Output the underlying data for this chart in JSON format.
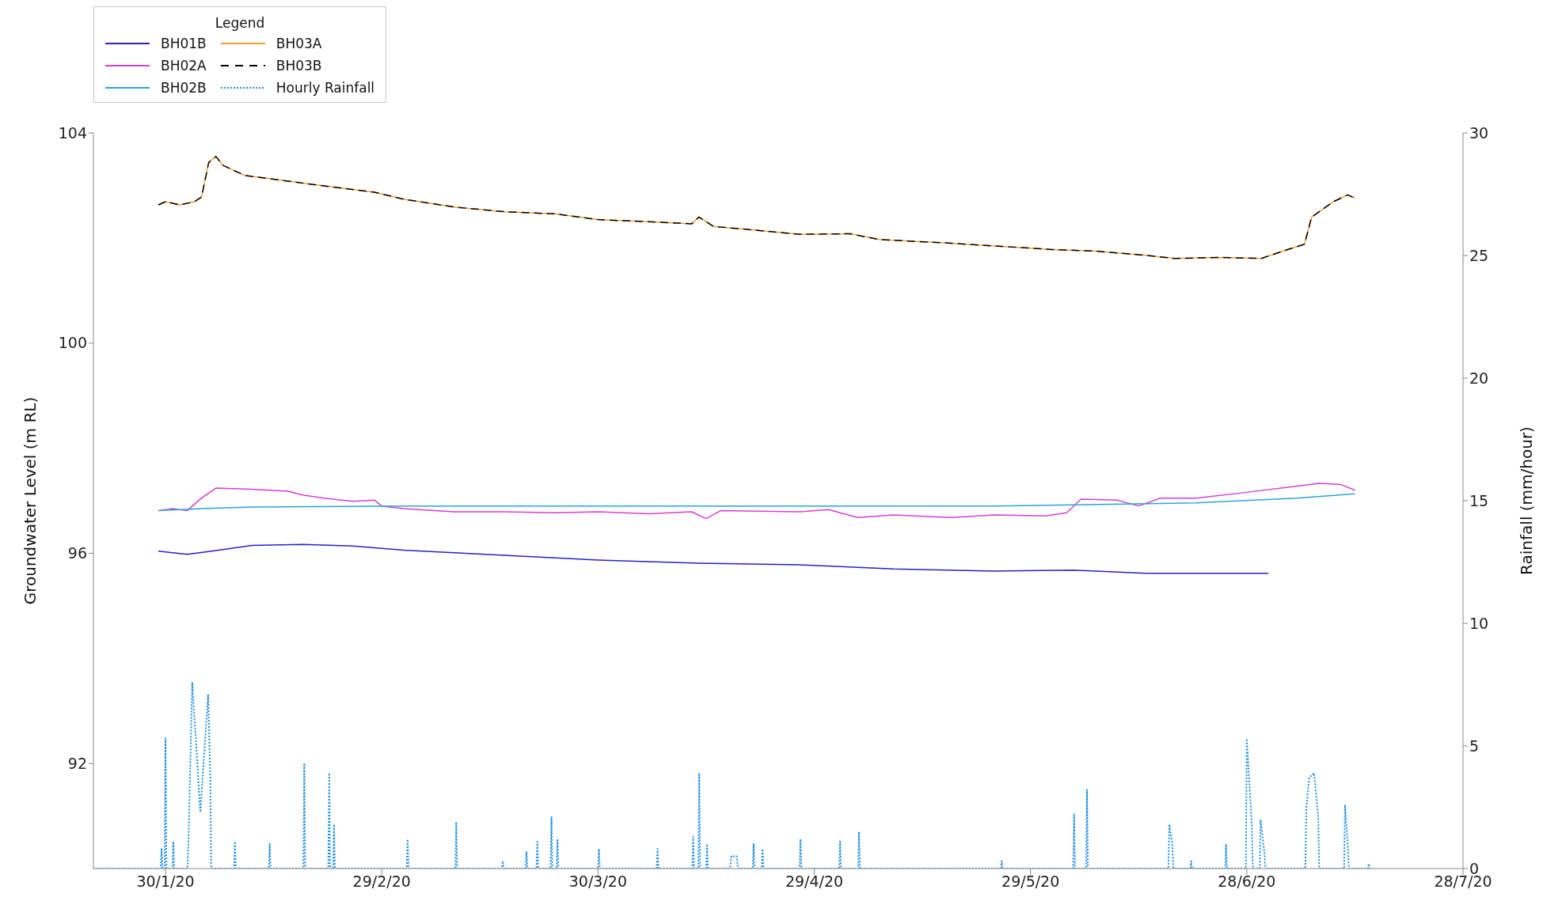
{
  "chart_data": {
    "type": "line",
    "ylabel": "Groundwater Level (m RL)",
    "y2label": "Rainfall (mm/hour)",
    "legend_title": "Legend",
    "legend": "top left",
    "grid": false,
    "marker": "none",
    "xlim": [
      "2020-01-20",
      "2020-07-28"
    ],
    "xticks": [
      {
        "value": "2020-01-30",
        "label": "30/1/20"
      },
      {
        "value": "2020-02-29",
        "label": "29/2/20"
      },
      {
        "value": "2020-03-30",
        "label": "30/3/20"
      },
      {
        "value": "2020-04-29",
        "label": "29/4/20"
      },
      {
        "value": "2020-05-29",
        "label": "29/5/20"
      },
      {
        "value": "2020-06-28",
        "label": "28/6/20"
      },
      {
        "value": "2020-07-28",
        "label": "28/7/20"
      }
    ],
    "ylim": [
      90,
      104
    ],
    "yticks": [
      92,
      96,
      100,
      104
    ],
    "y2lim": [
      0,
      30
    ],
    "y2ticks": [
      0,
      5,
      10,
      15,
      20,
      25,
      30
    ],
    "series": [
      {
        "name": "BH01B",
        "color": "#2a1fc9",
        "line_style": "solid",
        "x": [
          "2020-01-29",
          "2020-02-02",
          "2020-02-06",
          "2020-02-11",
          "2020-02-18",
          "2020-02-25",
          "2020-03-03",
          "2020-03-17",
          "2020-03-30",
          "2020-04-13",
          "2020-04-27",
          "2020-05-10",
          "2020-05-24",
          "2020-06-04",
          "2020-06-14",
          "2020-07-01"
        ],
        "values": [
          96.04,
          95.98,
          96.05,
          96.15,
          96.17,
          96.14,
          96.06,
          95.96,
          95.87,
          95.81,
          95.78,
          95.7,
          95.66,
          95.68,
          95.62,
          95.62
        ]
      },
      {
        "name": "BH02A",
        "color": "#d43fd4",
        "line_style": "solid",
        "x": [
          "2020-01-29",
          "2020-01-31",
          "2020-02-02",
          "2020-02-04",
          "2020-02-06",
          "2020-02-11",
          "2020-02-16",
          "2020-02-18",
          "2020-02-21",
          "2020-02-25",
          "2020-02-28",
          "2020-02-29",
          "2020-03-03",
          "2020-03-10",
          "2020-03-17",
          "2020-03-24",
          "2020-03-30",
          "2020-04-06",
          "2020-04-12",
          "2020-04-14",
          "2020-04-16",
          "2020-04-27",
          "2020-05-01",
          "2020-05-05",
          "2020-05-10",
          "2020-05-18",
          "2020-05-24",
          "2020-05-31",
          "2020-06-03",
          "2020-06-05",
          "2020-06-10",
          "2020-06-13",
          "2020-06-16",
          "2020-06-21",
          "2020-06-28",
          "2020-07-05",
          "2020-07-08",
          "2020-07-11",
          "2020-07-13"
        ],
        "values": [
          96.81,
          96.85,
          96.81,
          97.05,
          97.24,
          97.22,
          97.18,
          97.11,
          97.05,
          96.99,
          97.01,
          96.9,
          96.85,
          96.79,
          96.79,
          96.77,
          96.79,
          96.75,
          96.79,
          96.66,
          96.81,
          96.79,
          96.83,
          96.68,
          96.73,
          96.68,
          96.73,
          96.71,
          96.77,
          97.03,
          97.01,
          96.9,
          97.05,
          97.05,
          97.16,
          97.28,
          97.33,
          97.31,
          97.2
        ]
      },
      {
        "name": "BH02B",
        "color": "#2aa5d6",
        "line_style": "solid",
        "x": [
          "2020-01-29",
          "2020-02-04",
          "2020-02-11",
          "2020-03-03",
          "2020-03-30",
          "2020-04-27",
          "2020-05-24",
          "2020-06-04",
          "2020-06-21",
          "2020-07-05",
          "2020-07-13"
        ],
        "values": [
          96.81,
          96.85,
          96.88,
          96.9,
          96.9,
          96.9,
          96.9,
          96.92,
          96.96,
          97.05,
          97.13
        ]
      },
      {
        "name": "BH03A",
        "color": "#f0a030",
        "line_style": "solid",
        "x": [
          "2020-01-29",
          "2020-01-30",
          "2020-02-01",
          "2020-02-03",
          "2020-02-04",
          "2020-02-05",
          "2020-02-06",
          "2020-02-07",
          "2020-02-10",
          "2020-02-15",
          "2020-02-21",
          "2020-02-28",
          "2020-03-03",
          "2020-03-10",
          "2020-03-17",
          "2020-03-24",
          "2020-03-30",
          "2020-04-06",
          "2020-04-12",
          "2020-04-13",
          "2020-04-15",
          "2020-04-20",
          "2020-04-27",
          "2020-05-04",
          "2020-05-08",
          "2020-05-18",
          "2020-05-25",
          "2020-06-01",
          "2020-06-07",
          "2020-06-14",
          "2020-06-18",
          "2020-06-24",
          "2020-06-30",
          "2020-07-03",
          "2020-07-06",
          "2020-07-07",
          "2020-07-10",
          "2020-07-12",
          "2020-07-13"
        ],
        "values": [
          102.63,
          102.69,
          102.63,
          102.69,
          102.78,
          103.44,
          103.55,
          103.38,
          103.19,
          103.1,
          102.99,
          102.87,
          102.74,
          102.59,
          102.5,
          102.46,
          102.35,
          102.31,
          102.27,
          102.4,
          102.22,
          102.16,
          102.07,
          102.08,
          101.97,
          101.9,
          101.84,
          101.78,
          101.75,
          101.67,
          101.61,
          101.63,
          101.61,
          101.75,
          101.88,
          102.4,
          102.69,
          102.82,
          102.76
        ]
      },
      {
        "name": "BH03B",
        "color": "#000000",
        "line_style": "dashed",
        "x": [
          "2020-01-29",
          "2020-01-30",
          "2020-02-01",
          "2020-02-03",
          "2020-02-04",
          "2020-02-05",
          "2020-02-06",
          "2020-02-07",
          "2020-02-10",
          "2020-02-15",
          "2020-02-21",
          "2020-02-28",
          "2020-03-03",
          "2020-03-10",
          "2020-03-17",
          "2020-03-24",
          "2020-03-30",
          "2020-04-06",
          "2020-04-12",
          "2020-04-13",
          "2020-04-15",
          "2020-04-20",
          "2020-04-27",
          "2020-05-04",
          "2020-05-08",
          "2020-05-18",
          "2020-05-25",
          "2020-06-01",
          "2020-06-07",
          "2020-06-14",
          "2020-06-18",
          "2020-06-24",
          "2020-06-30",
          "2020-07-03",
          "2020-07-06",
          "2020-07-07",
          "2020-07-10",
          "2020-07-12",
          "2020-07-13"
        ],
        "values": [
          102.63,
          102.69,
          102.63,
          102.69,
          102.78,
          103.44,
          103.55,
          103.38,
          103.19,
          103.1,
          102.99,
          102.87,
          102.74,
          102.59,
          102.5,
          102.46,
          102.35,
          102.31,
          102.27,
          102.4,
          102.22,
          102.16,
          102.07,
          102.08,
          101.97,
          101.9,
          101.84,
          101.78,
          101.75,
          101.67,
          101.61,
          101.63,
          101.61,
          101.75,
          101.88,
          102.4,
          102.69,
          102.82,
          102.76
        ]
      },
      {
        "name": "Hourly Rainfall",
        "color": "#1e8fe6",
        "line_style": "dotted",
        "axis": "y2",
        "x": [
          "2020-01-20T00:00",
          "2020-01-29T08:00",
          "2020-01-29T11:00",
          "2020-01-29T14:00",
          "2020-01-29T21:00",
          "2020-01-30T00:00",
          "2020-01-30T03:00",
          "2020-01-30T23:00",
          "2020-01-31T02:00",
          "2020-01-31T05:00",
          "2020-02-02T01:00",
          "2020-02-02T04:00",
          "2020-02-02T17:00",
          "2020-02-03T20:00",
          "2020-02-04T22:00",
          "2020-02-05T05:00",
          "2020-02-05T08:00",
          "2020-02-08T12:00",
          "2020-02-08T15:00",
          "2020-02-08T18:00",
          "2020-02-13T08:00",
          "2020-02-13T11:00",
          "2020-02-13T14:00",
          "2020-02-18T03:00",
          "2020-02-18T06:00",
          "2020-02-18T09:00",
          "2020-02-21T14:00",
          "2020-02-21T17:00",
          "2020-02-21T20:00",
          "2020-02-22T06:00",
          "2020-02-22T09:00",
          "2020-02-22T12:00",
          "2020-03-03T11:00",
          "2020-03-03T14:00",
          "2020-03-03T17:00",
          "2020-03-10T05:00",
          "2020-03-10T08:00",
          "2020-03-10T11:00",
          "2020-03-16T16:00",
          "2020-03-16T19:00",
          "2020-03-16T22:00",
          "2020-03-19T23:00",
          "2020-03-20T02:00",
          "2020-03-20T05:00",
          "2020-03-21T11:00",
          "2020-03-21T14:00",
          "2020-03-21T17:00",
          "2020-03-23T10:00",
          "2020-03-23T13:00",
          "2020-03-23T16:00",
          "2020-03-24T06:00",
          "2020-03-24T09:00",
          "2020-03-24T12:00",
          "2020-03-30T00:00",
          "2020-03-30T03:00",
          "2020-03-30T06:00",
          "2020-04-07T03:00",
          "2020-04-07T06:00",
          "2020-04-07T09:00",
          "2020-04-12T02:00",
          "2020-04-12T05:00",
          "2020-04-12T08:00",
          "2020-04-12T22:00",
          "2020-04-13T01:00",
          "2020-04-13T04:00",
          "2020-04-14T00:00",
          "2020-04-14T03:00",
          "2020-04-14T06:00",
          "2020-04-17T08:00",
          "2020-04-17T12:00",
          "2020-04-18T06:00",
          "2020-04-18T10:00",
          "2020-04-20T11:00",
          "2020-04-20T14:00",
          "2020-04-20T17:00",
          "2020-04-21T17:00",
          "2020-04-21T20:00",
          "2020-04-21T23:00",
          "2020-04-26T23:00",
          "2020-04-27T02:00",
          "2020-04-27T05:00",
          "2020-05-02T11:00",
          "2020-05-02T14:00",
          "2020-05-02T17:00",
          "2020-05-05T02:00",
          "2020-05-05T05:00",
          "2020-05-05T08:00",
          "2020-05-24T21:00",
          "2020-05-25T00:00",
          "2020-05-25T03:00",
          "2020-06-03T22:00",
          "2020-06-04T01:00",
          "2020-06-04T04:00",
          "2020-06-05T17:00",
          "2020-06-05T20:00",
          "2020-06-05T23:00",
          "2020-06-17T03:00",
          "2020-06-17T06:00",
          "2020-06-17T16:00",
          "2020-06-17T19:00",
          "2020-06-20T04:00",
          "2020-06-20T07:00",
          "2020-06-20T10:00",
          "2020-06-25T00:00",
          "2020-06-25T03:00",
          "2020-06-25T06:00",
          "2020-06-27T21:00",
          "2020-06-28T00:00",
          "2020-06-28T17:00",
          "2020-06-28T20:00",
          "2020-06-29T19:00",
          "2020-06-29T22:00",
          "2020-06-30T11:00",
          "2020-06-30T14:00",
          "2020-07-06T03:00",
          "2020-07-06T06:00",
          "2020-07-06T16:00",
          "2020-07-07T08:00",
          "2020-07-07T22:00",
          "2020-07-08T01:00",
          "2020-07-11T12:00",
          "2020-07-11T15:00",
          "2020-07-12T01:00",
          "2020-07-12T04:00",
          "2020-07-14T19:00",
          "2020-07-14T22:00",
          "2020-07-15T01:00"
        ],
        "values": [
          0,
          0,
          0.8,
          0,
          0,
          5.3,
          0,
          0,
          1.1,
          0,
          0,
          0.9,
          7.6,
          2.3,
          7.1,
          3.8,
          0,
          0,
          1.1,
          0,
          0,
          1.0,
          0,
          0,
          4.3,
          0,
          0,
          3.9,
          0,
          0,
          1.8,
          0,
          0,
          1.2,
          0,
          0,
          1.9,
          0,
          0,
          0.3,
          0,
          0,
          0.7,
          0,
          0,
          1.1,
          0,
          0,
          2.1,
          0,
          0,
          1.2,
          0,
          0,
          0.8,
          0,
          0,
          0.8,
          0,
          0,
          1.3,
          0,
          0,
          3.9,
          0,
          0,
          1.0,
          0,
          0,
          0.5,
          0.5,
          0,
          0,
          1.0,
          0,
          0,
          0.8,
          0,
          0,
          1.2,
          0,
          0,
          1.1,
          0,
          0,
          1.5,
          0,
          0,
          0.3,
          0,
          0,
          2.2,
          0,
          0,
          3.2,
          0,
          0,
          1.8,
          1.0,
          0,
          0,
          0.3,
          0,
          0,
          1.0,
          0,
          0,
          5.3,
          1.7,
          0,
          0,
          2.0,
          0.6,
          0,
          0,
          2.4,
          3.7,
          3.9,
          2.1,
          0,
          0,
          2.6,
          0.8,
          0,
          0,
          0.2,
          0
        ]
      }
    ]
  }
}
